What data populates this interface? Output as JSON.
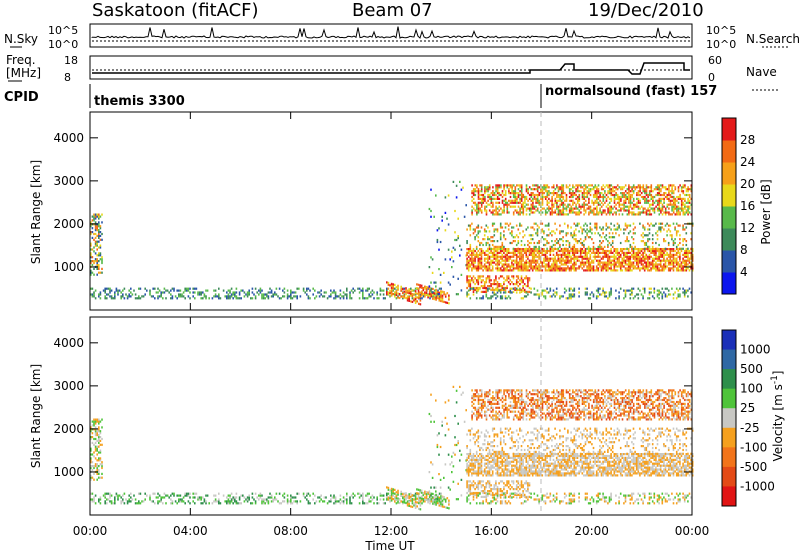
{
  "header": {
    "title": "Saskatoon (fitACF)",
    "beam": "Beam 07",
    "date": "19/Dec/2010"
  },
  "strip1": {
    "left_label": "N.Sky",
    "right_label": "N.Search",
    "left_ticks": [
      "10^5",
      "10^0"
    ],
    "right_ticks": [
      "10^5",
      "10^0"
    ]
  },
  "strip2": {
    "left_label_1": "Freq.",
    "left_label_2": "[MHz]",
    "right_label": "Nave",
    "left_ticks": [
      "18",
      "8"
    ],
    "right_ticks": [
      "60",
      "0"
    ]
  },
  "cpid": {
    "label": "CPID",
    "mode1": "themis 3300",
    "mode2": "normalsound (fast) 157"
  },
  "chart_data": [
    {
      "type": "heatmap",
      "panel": "power",
      "ylabel": "Slant Range [km]",
      "yticks": [
        "1000",
        "2000",
        "3000",
        "4000"
      ],
      "colorbar_label": "Power [dB]",
      "colorbar_ticks": [
        "4",
        "8",
        "12",
        "16",
        "20",
        "24",
        "28"
      ],
      "colorbar_colors": [
        "#0c16ee",
        "#2a55a8",
        "#3d8a5a",
        "#58b94a",
        "#e8d81a",
        "#f6a019",
        "#f26a14",
        "#e41a1a"
      ]
    },
    {
      "type": "heatmap",
      "panel": "velocity",
      "ylabel": "Slant Range [km]",
      "yticks": [
        "1000",
        "2000",
        "3000",
        "4000"
      ],
      "colorbar_label": "Velocity [m s-1]",
      "colorbar_label_main": "Velocity",
      "colorbar_label_unit": "[m s",
      "colorbar_label_exp": "-1",
      "colorbar_label_close": "]",
      "colorbar_ticks": [
        "1000",
        "500",
        "100",
        "25",
        "-25",
        "-100",
        "-500",
        "-1000"
      ],
      "colorbar_colors": [
        "#1a2fb8",
        "#2f68a4",
        "#2e8f4b",
        "#4fc43a",
        "#c8c8c4",
        "#f5a01e",
        "#f2741a",
        "#e44a16",
        "#e11414"
      ]
    }
  ],
  "xaxis": {
    "label": "Time UT",
    "ticks": [
      "00:00",
      "04:00",
      "08:00",
      "12:00",
      "16:00",
      "20:00",
      "00:00"
    ]
  }
}
